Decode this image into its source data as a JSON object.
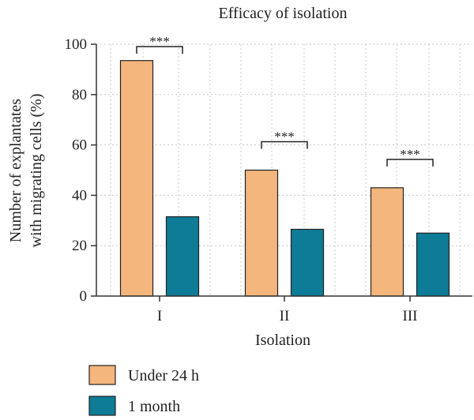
{
  "chart_data": {
    "type": "bar",
    "title": "Efficacy of isolation",
    "xlabel": "Isolation",
    "ylabel_lines": [
      "Number of explantates",
      "with migrating cells (%)"
    ],
    "categories": [
      "I",
      "II",
      "III"
    ],
    "series": [
      {
        "name": "Under 24 h",
        "color": "#F4B67C",
        "values": [
          93.5,
          50,
          43
        ]
      },
      {
        "name": "1 month",
        "color": "#0E7C96",
        "values": [
          31.5,
          26.5,
          25
        ]
      }
    ],
    "ylim": [
      0,
      100
    ],
    "yticks": [
      0,
      20,
      40,
      60,
      80,
      100
    ],
    "grid": "dotted vertical and horizontal",
    "significance": [
      {
        "category": "I",
        "label": "***"
      },
      {
        "category": "II",
        "label": "***"
      },
      {
        "category": "III",
        "label": "***"
      }
    ],
    "legend_position": "bottom-left"
  }
}
